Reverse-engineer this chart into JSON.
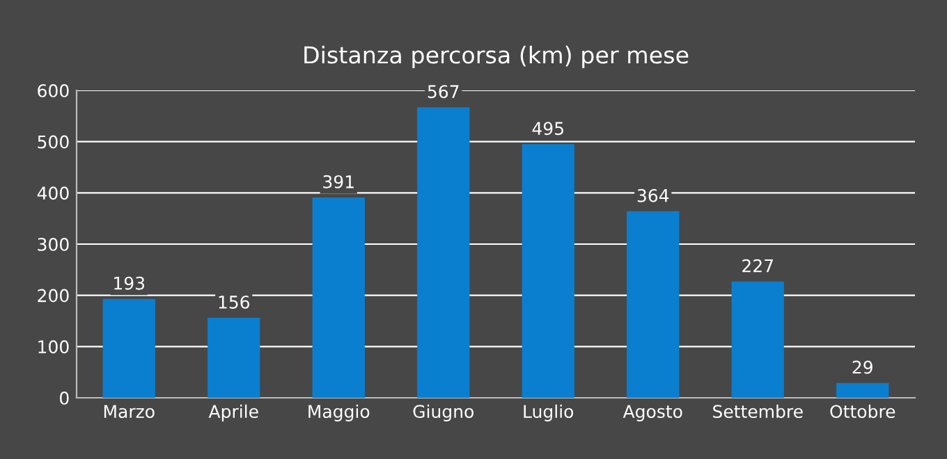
{
  "chart_data": {
    "type": "bar",
    "title": "Distanza percorsa (km) per mese",
    "categories": [
      "Marzo",
      "Aprile",
      "Maggio",
      "Giugno",
      "Luglio",
      "Agosto",
      "Settembre",
      "Ottobre"
    ],
    "values": [
      193,
      156,
      391,
      567,
      495,
      364,
      227,
      29
    ],
    "color": "#0a7fd0",
    "ylim": [
      0,
      600
    ],
    "yticks": [
      0,
      100,
      200,
      300,
      400,
      500,
      600
    ],
    "grid": "y",
    "data_labels": true
  }
}
